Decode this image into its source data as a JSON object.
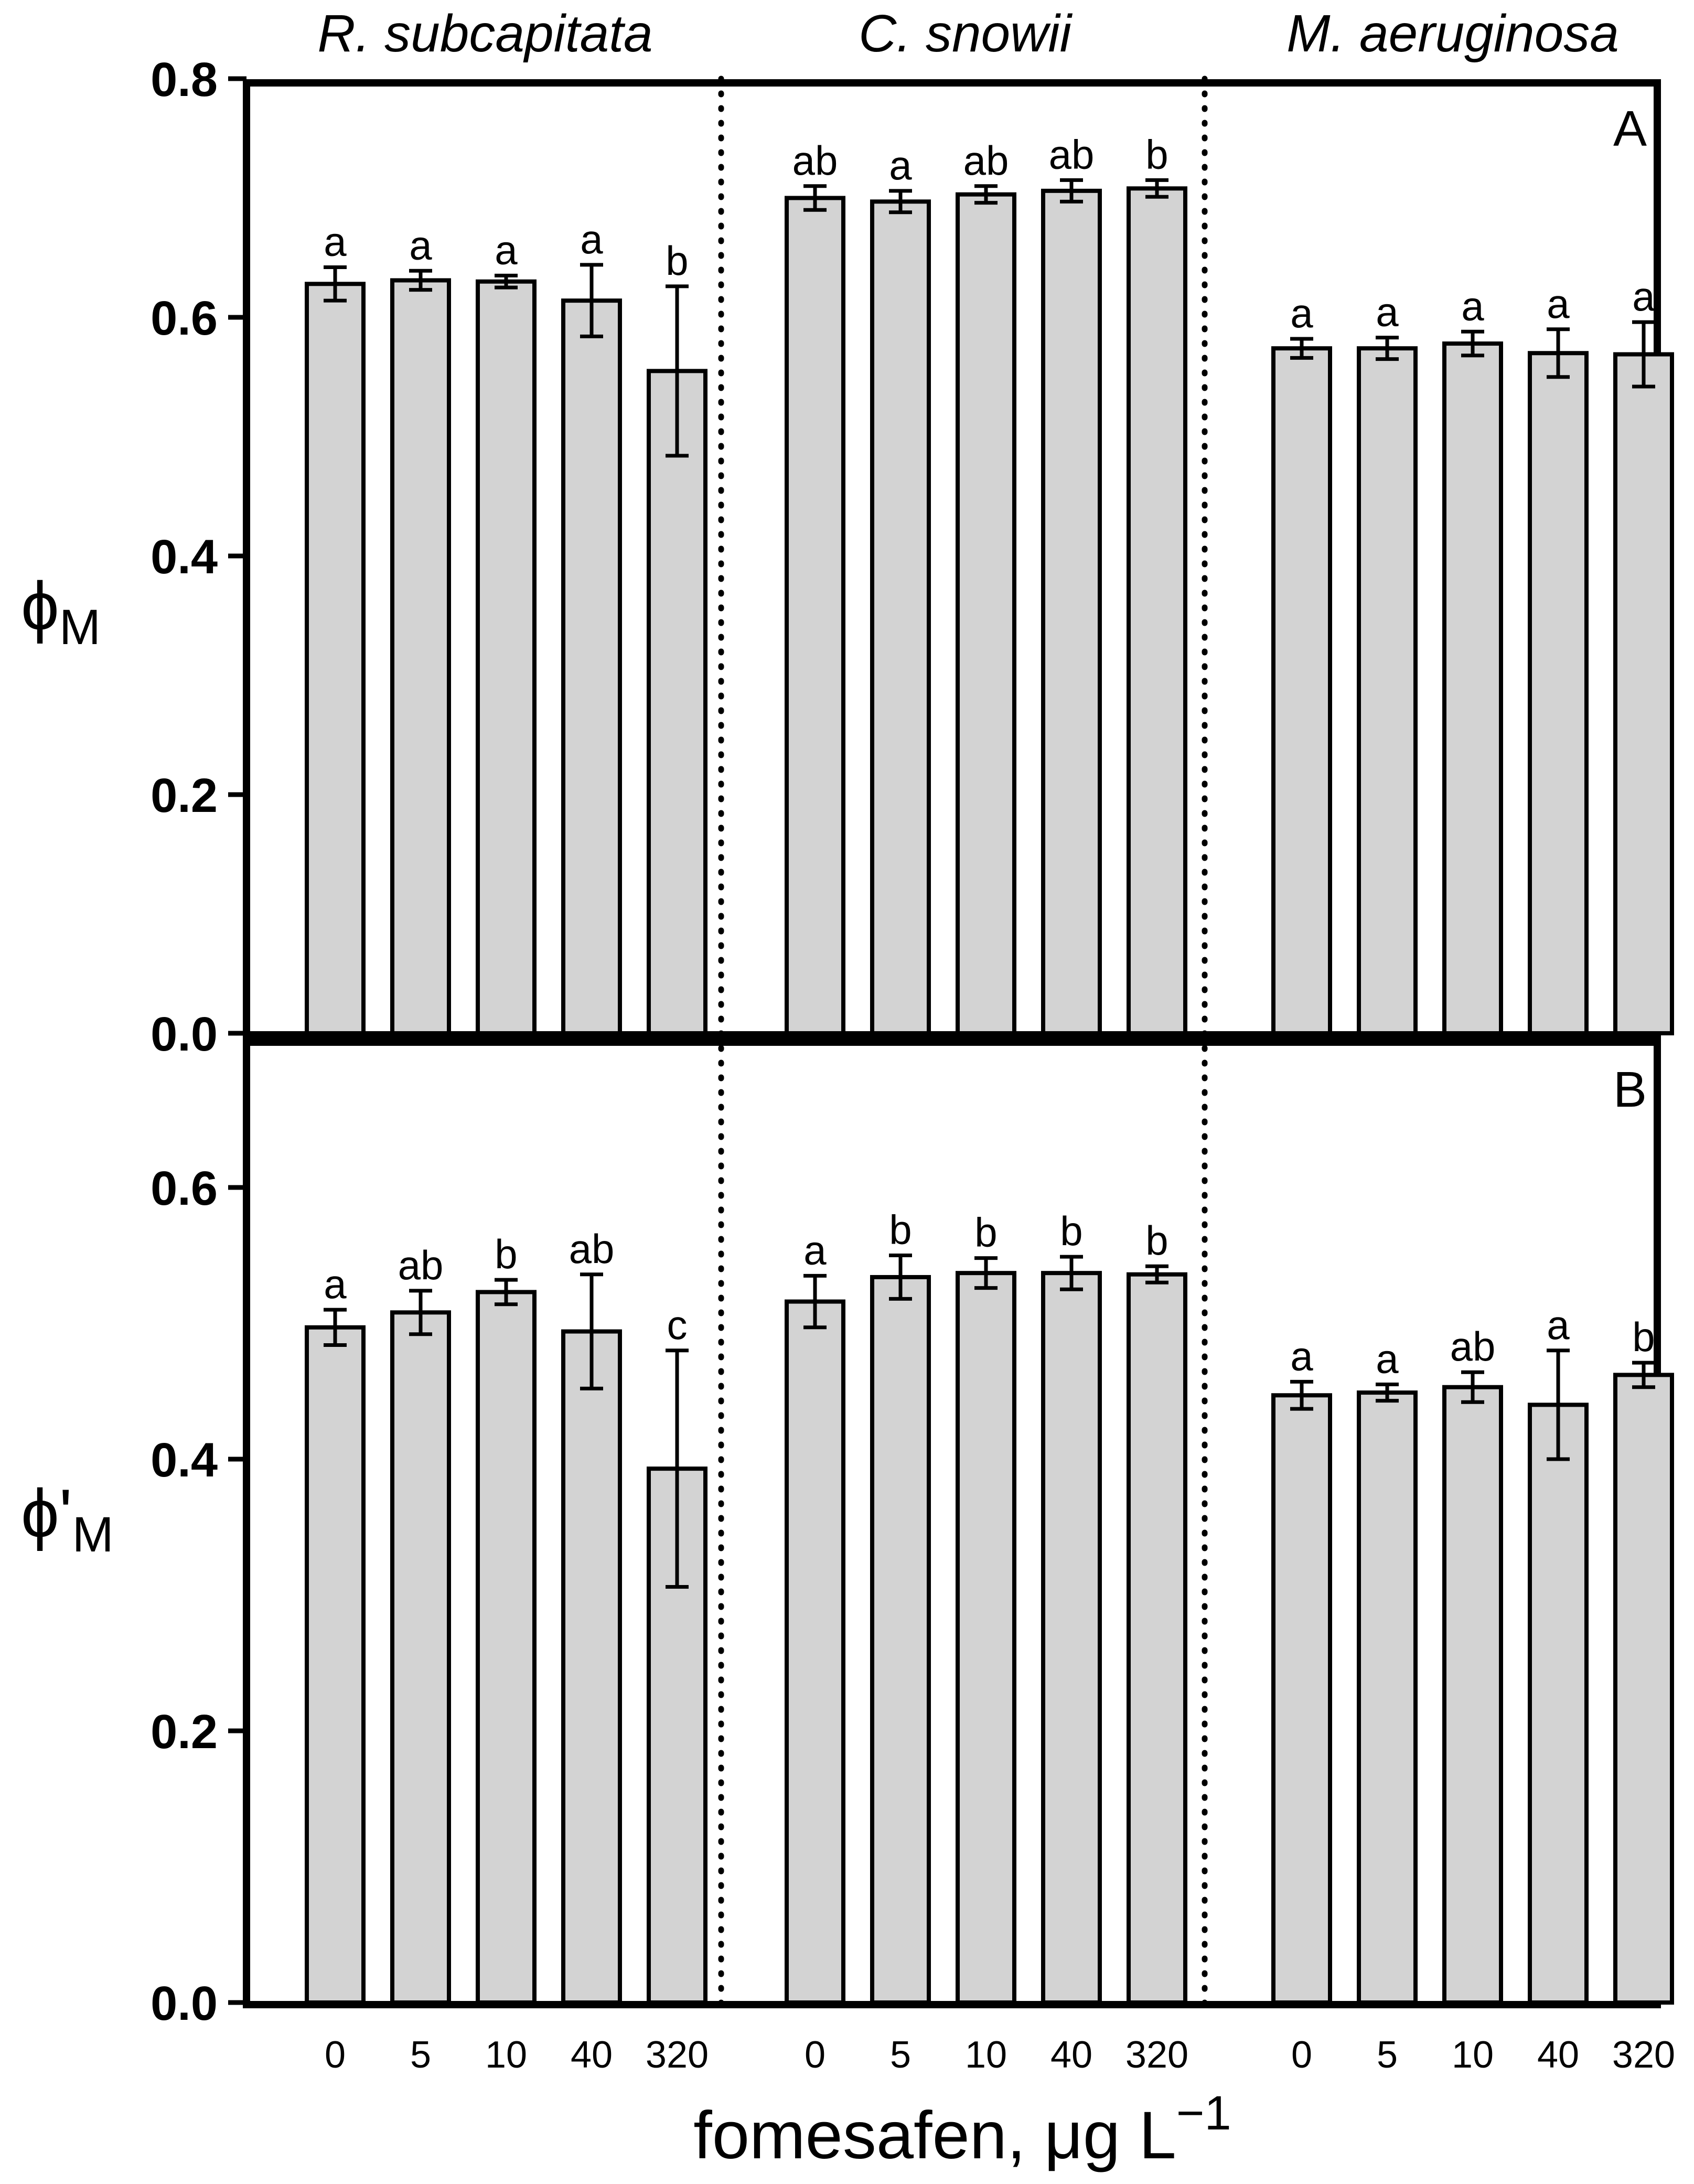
{
  "chart_data": [
    {
      "panel_label": "A",
      "type": "bar",
      "ylabel_symbol": "ϕ",
      "ylabel_sub": "M",
      "ylim": [
        0,
        0.8
      ],
      "yticks": [
        "0.0",
        "0.2",
        "0.4",
        "0.6",
        "0.8"
      ],
      "ytick_values": [
        0,
        0.2,
        0.4,
        0.6,
        0.8
      ],
      "groups": [
        {
          "name": "R. subcapitata",
          "values": [
            0.628,
            0.631,
            0.63,
            0.614,
            0.555
          ],
          "errors": [
            0.014,
            0.008,
            0.005,
            0.03,
            0.071
          ],
          "letters": [
            "a",
            "a",
            "a",
            "a",
            "b"
          ]
        },
        {
          "name": "C. snowii",
          "values": [
            0.7,
            0.697,
            0.703,
            0.706,
            0.708
          ],
          "errors": [
            0.01,
            0.009,
            0.007,
            0.009,
            0.007
          ],
          "letters": [
            "ab",
            "a",
            "ab",
            "ab",
            "b"
          ]
        },
        {
          "name": "M. aeruginosa",
          "values": [
            0.574,
            0.574,
            0.578,
            0.57,
            0.569
          ],
          "errors": [
            0.008,
            0.009,
            0.01,
            0.02,
            0.027
          ],
          "letters": [
            "a",
            "a",
            "a",
            "a",
            "a"
          ]
        }
      ]
    },
    {
      "panel_label": "B",
      "type": "bar",
      "ylabel_symbol": "ϕ'",
      "ylabel_sub": "M",
      "ylim": [
        0,
        0.7
      ],
      "yticks": [
        "0.0",
        "0.2",
        "0.4",
        "0.6"
      ],
      "ytick_values": [
        0,
        0.2,
        0.4,
        0.6
      ],
      "groups": [
        {
          "name": "R. subcapitata",
          "values": [
            0.497,
            0.508,
            0.523,
            0.494,
            0.393
          ],
          "errors": [
            0.013,
            0.016,
            0.009,
            0.042,
            0.087
          ],
          "letters": [
            "a",
            "ab",
            "b",
            "ab",
            "c"
          ]
        },
        {
          "name": "C. snowii",
          "values": [
            0.516,
            0.534,
            0.537,
            0.537,
            0.536
          ],
          "errors": [
            0.019,
            0.016,
            0.011,
            0.012,
            0.006
          ],
          "letters": [
            "a",
            "b",
            "b",
            "b",
            "b"
          ]
        },
        {
          "name": "M. aeruginosa",
          "values": [
            0.447,
            0.449,
            0.453,
            0.44,
            0.462
          ],
          "errors": [
            0.01,
            0.006,
            0.011,
            0.04,
            0.009
          ],
          "letters": [
            "a",
            "a",
            "ab",
            "a",
            "b"
          ]
        }
      ]
    }
  ],
  "species": [
    "R. subcapitata",
    "C. snowii",
    "M. aeruginosa"
  ],
  "x_categories": [
    "0",
    "5",
    "10",
    "40",
    "320"
  ],
  "xlabel_main": "fomesafen, μg L",
  "xlabel_sup": "−1",
  "colors": {
    "bar_fill": "#d3d3d3",
    "stroke": "#000000"
  }
}
